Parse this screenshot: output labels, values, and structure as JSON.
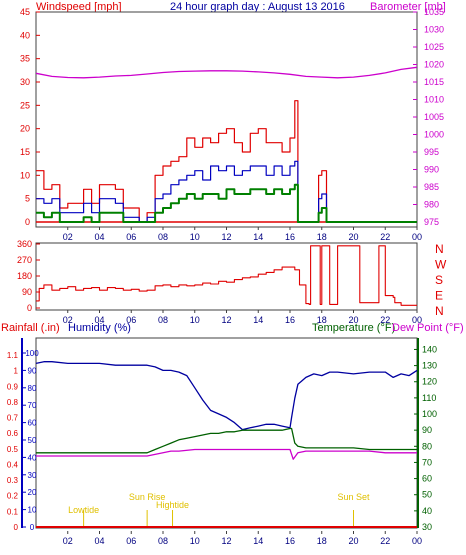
{
  "page": {
    "title": "24 hour graph day : August 13 2016"
  },
  "colors": {
    "wind_gust": "#e00000",
    "wind_avg": "#0000c0",
    "wind_min": "#008000",
    "barometer": "#cc00cc",
    "direction": "#e00000",
    "humidity": "#0000a0",
    "temperature": "#006000",
    "dewpoint": "#cc00cc",
    "rainfall": "#e00000",
    "events": "#e0c000"
  },
  "chart_data": [
    {
      "type": "line",
      "id": "wind_barometer",
      "left_label": "Windspeed [mph]",
      "right_label": "Barometer [mb]",
      "left_ticks": [
        "0",
        "5",
        "10",
        "15",
        "20",
        "25",
        "30",
        "35",
        "40",
        "45"
      ],
      "right_ticks": [
        "975",
        "980",
        "985",
        "990",
        "995",
        "1000",
        "1005",
        "1010",
        "1015",
        "1020",
        "1025",
        "1030",
        "1035"
      ],
      "x_ticks": [
        "02",
        "04",
        "06",
        "08",
        "10",
        "12",
        "14",
        "16",
        "18",
        "20",
        "22",
        "00"
      ],
      "ylim_left": [
        0,
        45
      ],
      "ylim_right": [
        975,
        1035
      ],
      "xlim_hours": [
        0,
        24
      ],
      "series": [
        {
          "key": "gust",
          "x": [
            0,
            0.5,
            1,
            1.5,
            2,
            2.5,
            3,
            3.5,
            4,
            4.5,
            5,
            5.5,
            6,
            6.5,
            7,
            7.5,
            8,
            8.5,
            9,
            9.5,
            10,
            10.5,
            11,
            11.5,
            12,
            12.5,
            13,
            13.5,
            14,
            14.5,
            15,
            15.5,
            16,
            16.3,
            16.5,
            17,
            17.5,
            17.8,
            18,
            18.3,
            18.6,
            19,
            20,
            21,
            22,
            23,
            24
          ],
          "y": [
            11,
            7,
            8,
            3,
            4,
            4,
            7,
            4,
            8,
            8,
            7,
            3,
            3,
            0,
            2,
            10,
            12,
            13,
            14,
            18,
            16,
            18,
            17,
            19,
            20,
            17,
            15,
            19,
            20,
            17,
            17,
            15,
            18,
            26,
            0,
            0,
            0,
            10,
            11,
            0,
            0,
            0,
            0,
            0,
            0,
            0,
            0
          ]
        },
        {
          "key": "avg",
          "x": [
            0,
            0.5,
            1,
            1.5,
            2,
            2.5,
            3,
            3.5,
            4,
            4.5,
            5,
            5.5,
            6,
            6.5,
            7,
            7.5,
            8,
            8.5,
            9,
            9.5,
            10,
            10.5,
            11,
            11.5,
            12,
            12.5,
            13,
            13.5,
            14,
            14.5,
            15,
            15.5,
            16,
            16.3,
            16.5,
            17,
            17.5,
            17.8,
            18,
            18.3,
            18.6,
            19,
            20,
            21,
            22,
            23,
            24
          ],
          "y": [
            5,
            4,
            5,
            2,
            2,
            2,
            4,
            2,
            5,
            5,
            4,
            1,
            1,
            0,
            1,
            5,
            6,
            8,
            9,
            10,
            11,
            9,
            12,
            11,
            12,
            10,
            11,
            12,
            12,
            10,
            12,
            10,
            12,
            13,
            0,
            0,
            0,
            5,
            6,
            0,
            0,
            0,
            0,
            0,
            0,
            0,
            0
          ]
        },
        {
          "key": "min",
          "x": [
            0,
            0.5,
            1,
            1.5,
            2,
            2.5,
            3,
            3.5,
            4,
            4.5,
            5,
            5.5,
            6,
            6.5,
            7,
            7.5,
            8,
            8.5,
            9,
            9.5,
            10,
            10.5,
            11,
            11.5,
            12,
            12.5,
            13,
            13.5,
            14,
            14.5,
            15,
            15.5,
            16,
            16.3,
            16.5,
            17,
            17.5,
            17.8,
            18,
            18.3,
            18.6,
            19,
            20,
            21,
            22,
            23,
            24
          ],
          "y": [
            2,
            1,
            2,
            0,
            0,
            0,
            1,
            0,
            2,
            2,
            2,
            0,
            0,
            0,
            0,
            2,
            3,
            4,
            5,
            6,
            5,
            6,
            6,
            5,
            7,
            6,
            6,
            7,
            7,
            6,
            7,
            6,
            7,
            8,
            0,
            0,
            0,
            2,
            3,
            0,
            0,
            0,
            0,
            0,
            0,
            0,
            0
          ]
        },
        {
          "key": "baro",
          "x": [
            0,
            1,
            2,
            3,
            4,
            5,
            6,
            7,
            8,
            9,
            10,
            11,
            12,
            13,
            14,
            15,
            16,
            17,
            18,
            19,
            20,
            21,
            22,
            23,
            24
          ],
          "y": [
            1017.5,
            1016.6,
            1016.3,
            1016.2,
            1016.4,
            1016.7,
            1016.9,
            1017.3,
            1017.7,
            1018.0,
            1018.1,
            1018.2,
            1018.2,
            1018.1,
            1017.9,
            1017.6,
            1017.2,
            1016.6,
            1016.4,
            1016.2,
            1016.4,
            1016.9,
            1017.6,
            1018.6,
            1019.2
          ]
        }
      ]
    },
    {
      "type": "line",
      "id": "wind_direction",
      "left_ticks": [
        "0",
        "90",
        "180",
        "270",
        "360"
      ],
      "right_ticks": [
        "N",
        "E",
        "S",
        "W",
        "N"
      ],
      "x_ticks": [
        "02",
        "04",
        "06",
        "08",
        "10",
        "12",
        "14",
        "16",
        "18",
        "20",
        "22",
        "00"
      ],
      "ylim": [
        0,
        360
      ],
      "xlim_hours": [
        0,
        24
      ],
      "series": [
        {
          "key": "dir",
          "x": [
            0,
            0.2,
            0.5,
            1,
            1.5,
            2,
            2.5,
            3,
            3.5,
            4,
            4.5,
            5,
            5.5,
            6,
            6.5,
            7,
            7.5,
            8,
            8.5,
            9,
            9.5,
            10,
            10.5,
            11,
            11.5,
            12,
            12.5,
            13,
            13.5,
            14,
            14.5,
            15,
            15.5,
            16,
            16.3,
            16.6,
            17,
            17.2,
            17.3,
            17.8,
            17.9,
            18.0,
            18.1,
            18.4,
            18.5,
            19,
            19.5,
            20,
            20.3,
            20.4,
            21,
            21.5,
            21.6,
            21.7,
            22,
            22.5,
            22.6,
            23,
            23.5,
            24
          ],
          "y": [
            40,
            110,
            130,
            100,
            110,
            120,
            100,
            110,
            115,
            100,
            115,
            110,
            100,
            105,
            95,
            100,
            125,
            130,
            120,
            130,
            125,
            130,
            140,
            135,
            150,
            145,
            160,
            170,
            175,
            190,
            200,
            215,
            230,
            230,
            215,
            130,
            25,
            20,
            350,
            350,
            20,
            350,
            350,
            350,
            20,
            350,
            350,
            350,
            350,
            30,
            30,
            30,
            350,
            350,
            70,
            60,
            30,
            15,
            15,
            15
          ]
        }
      ]
    },
    {
      "type": "line",
      "id": "humidity_temperature",
      "left_outer_label": "Rainfall (.in)",
      "left_inner_label": "Humidity (%)",
      "right_inner_label": "Temperature (°F)",
      "right_outer_label": "Dew Point (°F)",
      "rain_ticks": [
        "0",
        "0.1",
        "0.2",
        "0.3",
        "0.4",
        "0.5",
        "0.6",
        "0.7",
        "0.8",
        "0.9",
        "1",
        "1.1"
      ],
      "humidity_ticks": [
        "0",
        "10",
        "20",
        "30",
        "40",
        "50",
        "60",
        "70",
        "80",
        "90",
        "100"
      ],
      "temp_ticks": [
        "30",
        "40",
        "50",
        "60",
        "70",
        "80",
        "90",
        "100",
        "110",
        "120",
        "130",
        "140"
      ],
      "x_ticks": [
        "02",
        "04",
        "06",
        "08",
        "10",
        "12",
        "14",
        "16",
        "18",
        "20",
        "22",
        "00"
      ],
      "ylim_rain": [
        0,
        1.15
      ],
      "ylim_humidity": [
        0,
        100
      ],
      "ylim_temp": [
        30,
        144
      ],
      "xlim_hours": [
        0,
        24
      ],
      "events": [
        {
          "label": "Lowtide",
          "hour": 3.0
        },
        {
          "label": "Sun Rise",
          "hour": 7.0
        },
        {
          "label": "Hightide",
          "hour": 8.6
        },
        {
          "label": "Sun Set",
          "hour": 20.0
        }
      ],
      "series": [
        {
          "key": "humidity",
          "x": [
            0,
            0.5,
            1,
            2,
            3,
            4,
            5,
            6,
            6.5,
            7,
            7.5,
            8,
            8.5,
            9,
            9.5,
            10,
            10.5,
            11,
            11.5,
            12,
            12.5,
            13,
            13.5,
            14,
            14.5,
            15,
            15.5,
            16,
            16.1,
            16.3,
            16.5,
            17,
            17.5,
            18,
            18.5,
            19,
            20,
            21,
            22,
            22.5,
            23,
            23.5,
            24
          ],
          "y": [
            94,
            95,
            95,
            94,
            94,
            94,
            93,
            93,
            93,
            93,
            92,
            90,
            90,
            89,
            87,
            80,
            73,
            67,
            65,
            63,
            60,
            56,
            57,
            58,
            59,
            59,
            58,
            57,
            63,
            74,
            82,
            86,
            88,
            87,
            89,
            89,
            88,
            89,
            89,
            86,
            88,
            87,
            90
          ]
        },
        {
          "key": "temperature",
          "x": [
            0,
            1,
            2,
            3,
            4,
            5,
            6,
            7,
            7.5,
            8,
            8.5,
            9,
            9.5,
            10,
            10.5,
            11,
            11.5,
            12,
            12.5,
            13,
            13.5,
            14,
            14.5,
            15,
            15.5,
            16,
            16.1,
            16.3,
            16.5,
            17,
            18,
            19,
            20,
            21,
            22,
            23,
            24
          ],
          "y": [
            76,
            76,
            76,
            76,
            76,
            76,
            76,
            76,
            78,
            80,
            82,
            84,
            85,
            86,
            87,
            88,
            88,
            89,
            89,
            90,
            90,
            90,
            90,
            90,
            90,
            91,
            91,
            82,
            80,
            79,
            79,
            79,
            79,
            78,
            78,
            78,
            78
          ]
        },
        {
          "key": "dewpoint",
          "x": [
            0,
            1,
            2,
            3,
            4,
            5,
            6,
            7,
            7.5,
            8,
            8.5,
            9,
            10,
            11,
            12,
            13,
            14,
            15,
            16,
            16.2,
            16.5,
            17,
            18,
            19,
            20,
            21,
            22,
            23,
            24
          ],
          "y": [
            74,
            74,
            74,
            74,
            74,
            74,
            74,
            74,
            75,
            76,
            77,
            77,
            78,
            78,
            78,
            78,
            78,
            78,
            78,
            72,
            76,
            77,
            77,
            77,
            77,
            77,
            76,
            76,
            76
          ]
        },
        {
          "key": "rainfall",
          "x": [
            0,
            24
          ],
          "y": [
            0,
            0
          ]
        }
      ]
    }
  ]
}
